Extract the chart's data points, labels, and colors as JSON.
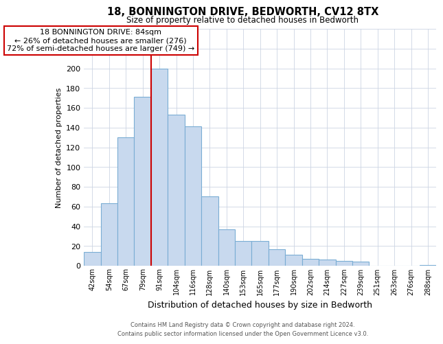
{
  "title": "18, BONNINGTON DRIVE, BEDWORTH, CV12 8TX",
  "subtitle": "Size of property relative to detached houses in Bedworth",
  "xlabel": "Distribution of detached houses by size in Bedworth",
  "ylabel": "Number of detached properties",
  "bar_labels": [
    "42sqm",
    "54sqm",
    "67sqm",
    "79sqm",
    "91sqm",
    "104sqm",
    "116sqm",
    "128sqm",
    "140sqm",
    "153sqm",
    "165sqm",
    "177sqm",
    "190sqm",
    "202sqm",
    "214sqm",
    "227sqm",
    "239sqm",
    "251sqm",
    "263sqm",
    "276sqm",
    "288sqm"
  ],
  "bar_values": [
    14,
    63,
    130,
    171,
    200,
    153,
    141,
    70,
    37,
    25,
    25,
    17,
    11,
    7,
    6,
    5,
    4,
    0,
    0,
    0,
    1
  ],
  "bar_color": "#c8d9ee",
  "bar_edge_color": "#7aadd4",
  "ylim": [
    0,
    240
  ],
  "yticks": [
    0,
    20,
    40,
    60,
    80,
    100,
    120,
    140,
    160,
    180,
    200,
    220,
    240
  ],
  "vline_x_index": 4,
  "vline_color": "#cc0000",
  "annotation_line1": "18 BONNINGTON DRIVE: 84sqm",
  "annotation_line2": "← 26% of detached houses are smaller (276)",
  "annotation_line3": "72% of semi-detached houses are larger (749) →",
  "annotation_box_color": "#ffffff",
  "annotation_box_edge": "#cc0000",
  "footer_line1": "Contains HM Land Registry data © Crown copyright and database right 2024.",
  "footer_line2": "Contains public sector information licensed under the Open Government Licence v3.0.",
  "background_color": "#ffffff",
  "grid_color": "#ccd5e3"
}
